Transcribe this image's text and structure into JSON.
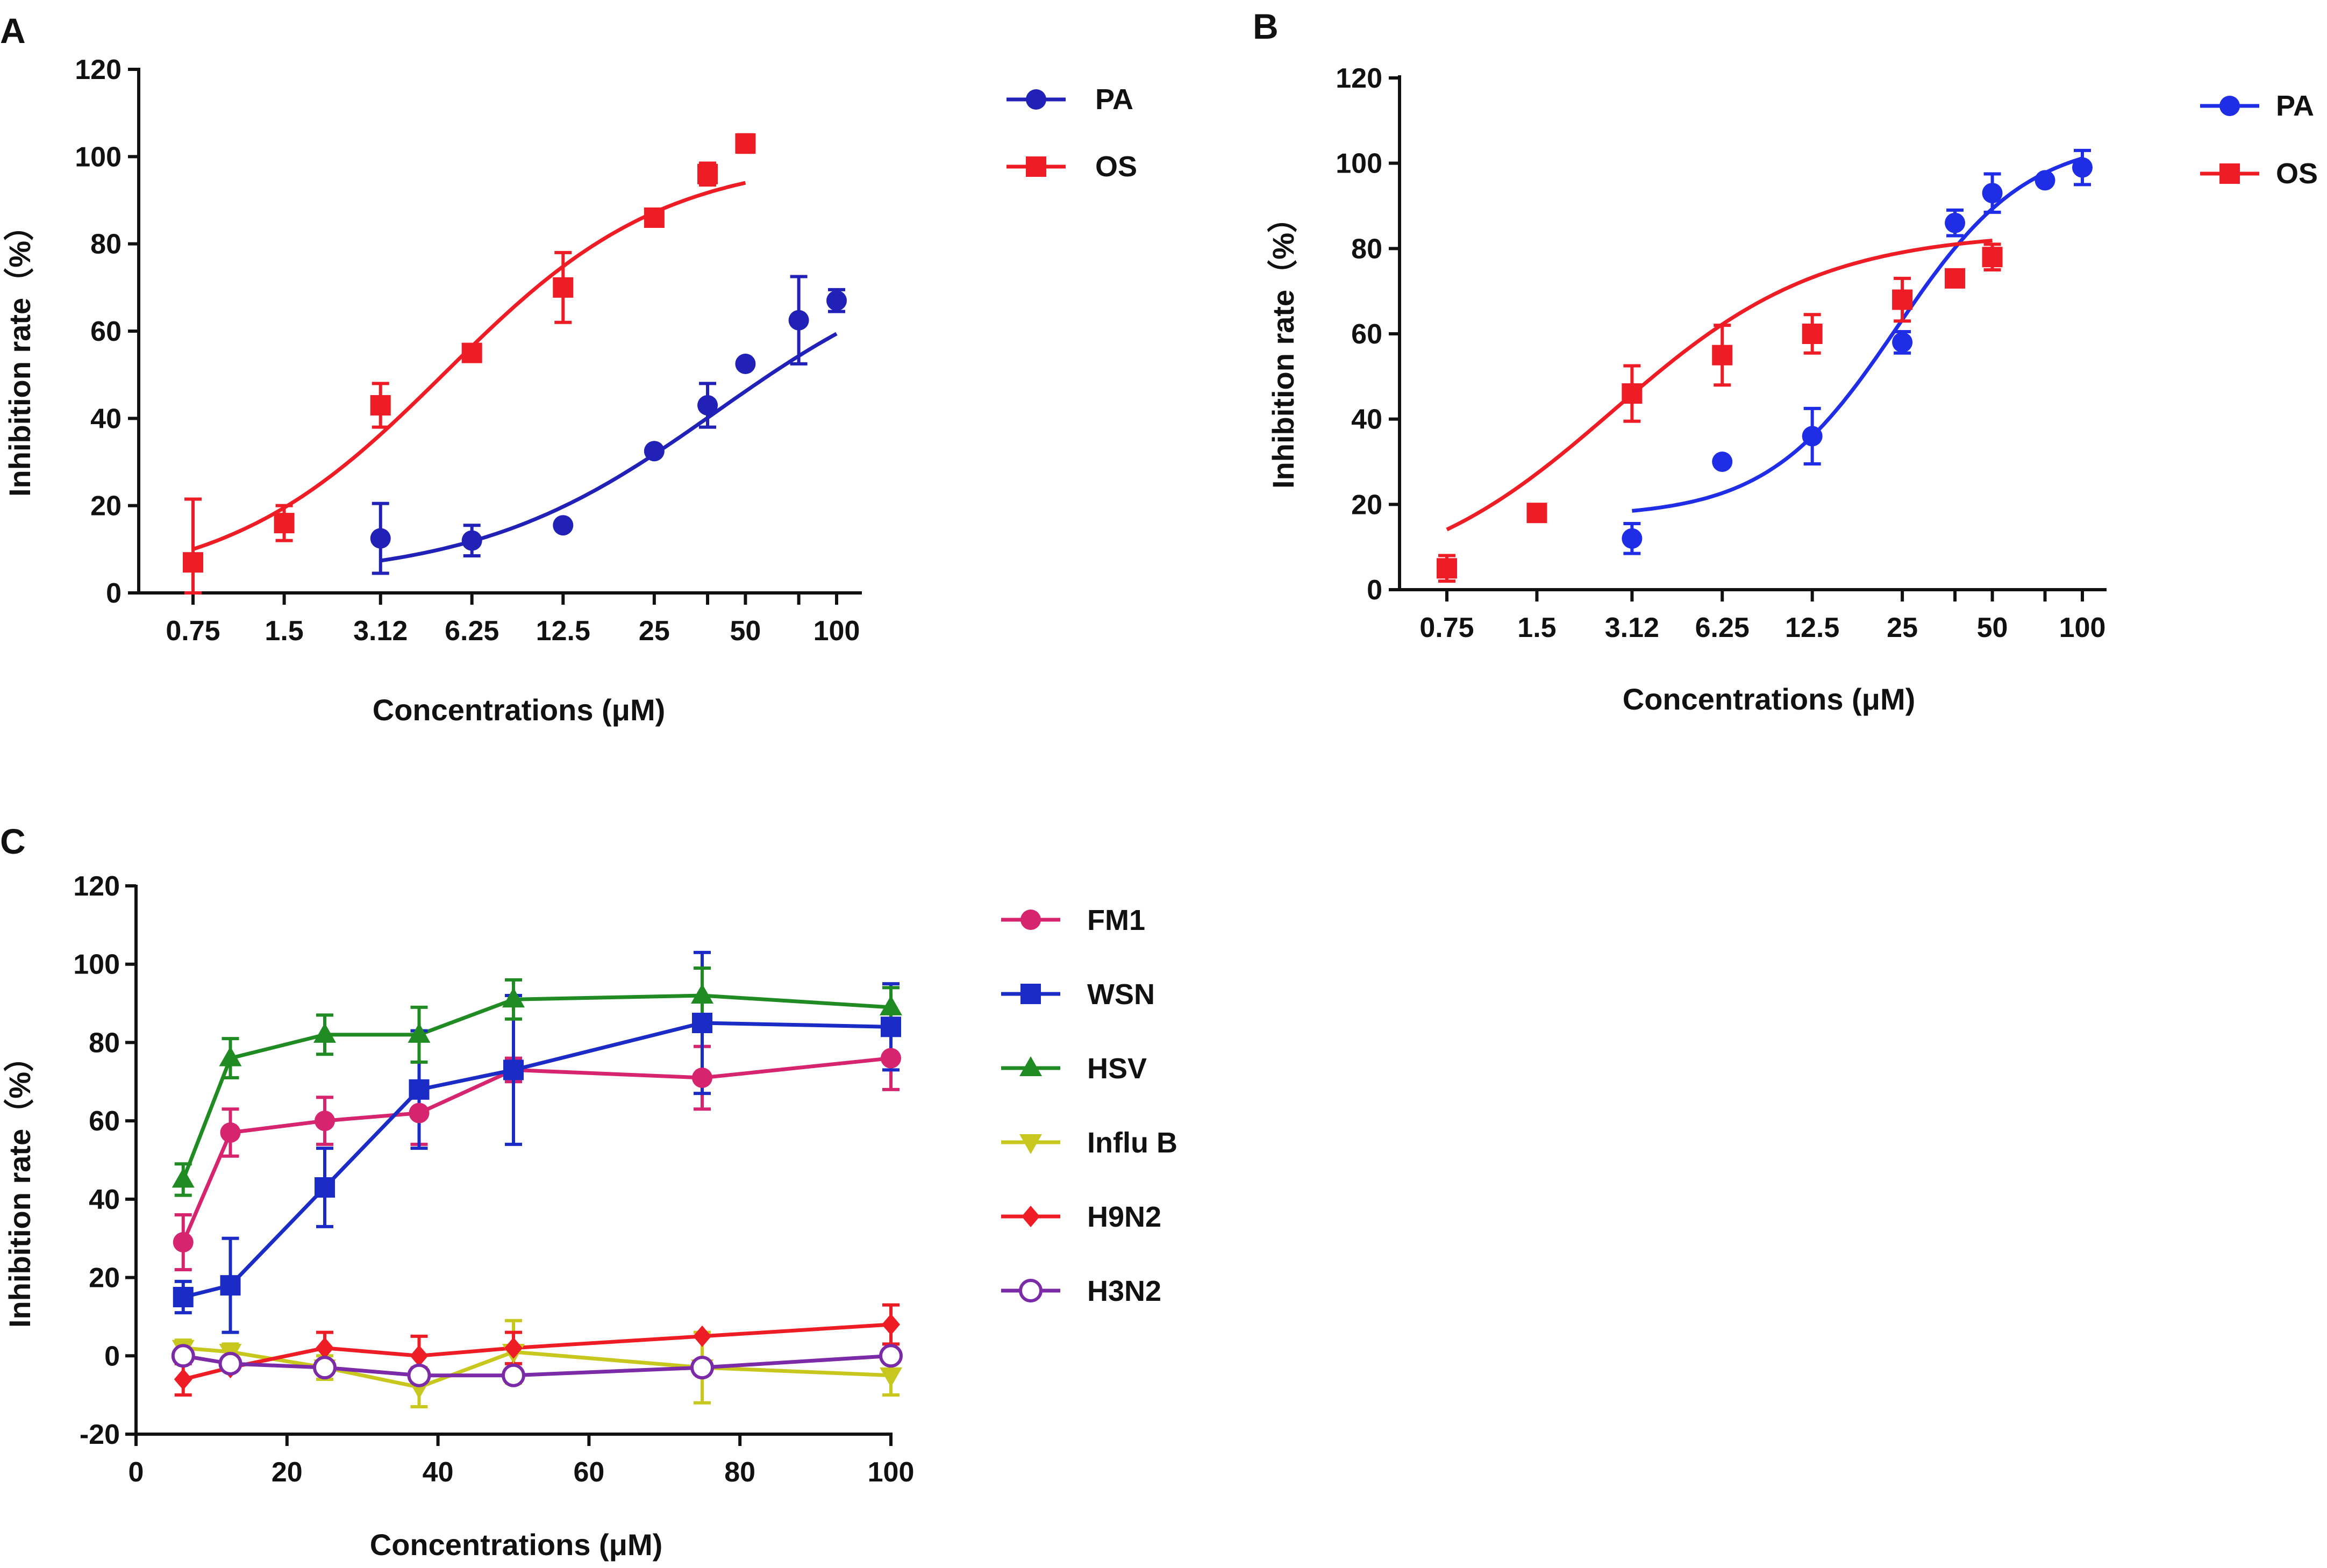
{
  "colors": {
    "axis": "#111111",
    "PA_A": "#2121b8",
    "PA_B": "#1f2ee6",
    "OS": "#ee1c24",
    "FM1": "#d6246e",
    "WSN": "#1b2bc6",
    "HSV": "#1f8b22",
    "InfluB": "#c7c71e",
    "H9N2": "#ee1c24",
    "H3N2": "#7b2aa8"
  },
  "chart_data": [
    {
      "panel": "A",
      "type": "scatter",
      "xscale": "log",
      "xlabel": "Concentrations (μM)",
      "ylabel": "Inhibition rate（%）",
      "ylim": [
        0,
        120
      ],
      "yticks": [
        "0",
        "20",
        "40",
        "60",
        "80",
        "100",
        "120"
      ],
      "xticks": [
        "0.75",
        "1.5",
        "3.12",
        "6.25",
        "12.5",
        "25",
        "50",
        "100"
      ],
      "series": [
        {
          "name": "PA",
          "color_key": "PA_A",
          "marker": "circle",
          "x": [
            3.12,
            6.25,
            12.5,
            25,
            37.5,
            50,
            75,
            100
          ],
          "y": [
            12.5,
            12,
            15.5,
            32.5,
            43,
            52.5,
            62.5,
            67
          ],
          "err": [
            8,
            3.5,
            0,
            0,
            5,
            0,
            10,
            2.5
          ],
          "fit": {
            "bottom": 3,
            "top": 80,
            "ec50": 40,
            "hill": 1.1,
            "xmin": 3.12,
            "xmax": 100
          }
        },
        {
          "name": "OS",
          "color_key": "OS",
          "marker": "square",
          "x": [
            0.75,
            1.5,
            3.12,
            6.25,
            12.5,
            25,
            37.5,
            50
          ],
          "y": [
            7,
            16,
            43,
            55,
            70,
            86,
            96,
            103
          ],
          "err": [
            14.5,
            4,
            5,
            1,
            8,
            1.5,
            2.5,
            2
          ],
          "fit": {
            "bottom": 1,
            "top": 100,
            "ec50": 5.1,
            "hill": 1.2,
            "xmin": 0.75,
            "xmax": 50
          }
        }
      ]
    },
    {
      "panel": "B",
      "type": "scatter",
      "xscale": "log",
      "xlabel": "Concentrations (μM)",
      "ylabel": "Inhibition rate（%）",
      "ylim": [
        0,
        120
      ],
      "yticks": [
        "0",
        "20",
        "40",
        "60",
        "80",
        "100",
        "120"
      ],
      "xticks": [
        "0.75",
        "1.5",
        "3.12",
        "6.25",
        "12.5",
        "25",
        "50",
        "100"
      ],
      "series": [
        {
          "name": "PA",
          "color_key": "PA_B",
          "marker": "circle",
          "x": [
            3.12,
            6.25,
            12.5,
            25,
            37.5,
            50,
            75,
            100
          ],
          "y": [
            12,
            30,
            36,
            58,
            86,
            93,
            96,
            99
          ],
          "err": [
            3.5,
            0,
            6.5,
            2.5,
            3,
            4.5,
            0,
            4
          ],
          "fit": {
            "bottom": 17,
            "top": 106,
            "ec50": 24,
            "hill": 2.0,
            "xmin": 3.12,
            "xmax": 100
          }
        },
        {
          "name": "OS",
          "color_key": "OS",
          "marker": "square",
          "x": [
            0.75,
            1.5,
            3.12,
            6.25,
            12.5,
            25,
            37.5,
            50
          ],
          "y": [
            5,
            18,
            46,
            55,
            60,
            68,
            73,
            78
          ],
          "err": [
            3,
            0,
            6.5,
            7,
            4.5,
            5,
            0,
            3
          ],
          "fit": {
            "bottom": 0,
            "top": 84,
            "ec50": 2.7,
            "hill": 1.25,
            "xmin": 0.75,
            "xmax": 50
          }
        }
      ]
    },
    {
      "panel": "C",
      "type": "line",
      "xlabel": "Concentrations (μM)",
      "ylabel": "Inhibition rate（%）",
      "xlim": [
        0,
        100
      ],
      "ylim": [
        -20,
        120
      ],
      "xticks": [
        "0",
        "20",
        "40",
        "60",
        "80",
        "100"
      ],
      "yticks": [
        "-20",
        "0",
        "20",
        "40",
        "60",
        "80",
        "100",
        "120"
      ],
      "x": [
        6.25,
        12.5,
        25,
        37.5,
        50,
        75,
        100
      ],
      "series": [
        {
          "name": "FM1",
          "color_key": "FM1",
          "marker": "circle",
          "filled": true,
          "values": [
            29,
            57,
            60,
            62,
            73,
            71,
            76
          ],
          "err": [
            7,
            6,
            6,
            8,
            3,
            8,
            8
          ]
        },
        {
          "name": "WSN",
          "color_key": "WSN",
          "marker": "square",
          "filled": true,
          "values": [
            15,
            18,
            43,
            68,
            73,
            85,
            84
          ],
          "err": [
            4,
            12,
            10,
            15,
            19,
            18,
            11
          ]
        },
        {
          "name": "HSV",
          "color_key": "HSV",
          "marker": "triangle",
          "filled": true,
          "values": [
            45,
            76,
            82,
            82,
            91,
            92,
            89
          ],
          "err": [
            4,
            5,
            5,
            7,
            5,
            7,
            5
          ]
        },
        {
          "name": "Influ B",
          "color_key": "InfluB",
          "marker": "triangle-down",
          "filled": true,
          "values": [
            2,
            1,
            -3,
            -8,
            1,
            -3,
            -5
          ],
          "err": [
            2,
            2,
            3,
            5,
            8,
            9,
            5
          ]
        },
        {
          "name": "H9N2",
          "color_key": "H9N2",
          "marker": "diamond",
          "filled": true,
          "values": [
            -6,
            -3,
            2,
            0,
            2,
            5,
            8
          ],
          "err": [
            4,
            0,
            4,
            5,
            4,
            0,
            5
          ]
        },
        {
          "name": "H3N2",
          "color_key": "H3N2",
          "marker": "circle",
          "filled": false,
          "values": [
            0,
            -2,
            -3,
            -5,
            -5,
            -3,
            0
          ],
          "err": [
            0,
            0,
            0,
            0,
            0,
            0,
            0
          ]
        }
      ]
    }
  ]
}
